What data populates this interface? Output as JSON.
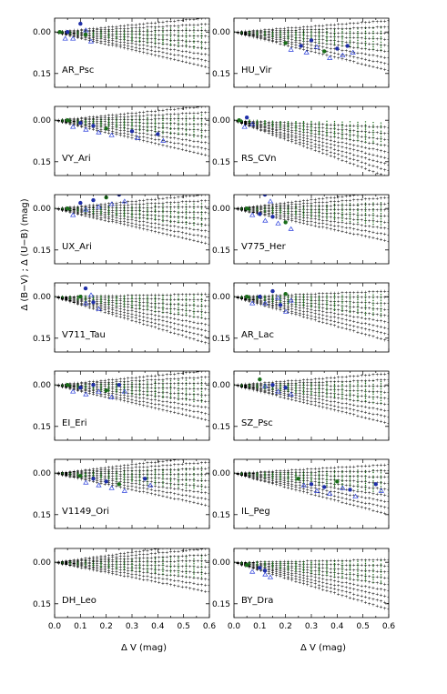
{
  "figure": {
    "ylabel": "Δ (B−V) ; Δ (U−B) (mag)",
    "xlabel": "Δ V (mag)"
  },
  "chart_data": {
    "type": "scatter",
    "layout": "7 rows × 2 columns of panels",
    "xlim": [
      0.0,
      0.6
    ],
    "ylim": [
      -0.05,
      0.2
    ],
    "y_inverted": true,
    "xticks": [
      "0.0",
      "0.1",
      "0.2",
      "0.3",
      "0.4",
      "0.5",
      "0.6"
    ],
    "yticks": [
      "0.00",
      "0.15"
    ],
    "ytick_values": [
      0.0,
      0.15
    ],
    "series_colors": {
      "model_BV": "#ff1a1a",
      "model_UB": "#1a6e1a",
      "obs_BV": "#1f2fa8",
      "obs_UB": "#2a3fdc"
    },
    "panels": [
      {
        "label": "AR_Psc",
        "model_slope": 0.25,
        "obs": [
          [
            0.02,
            0.0
          ],
          [
            0.05,
            0.0
          ],
          [
            0.1,
            -0.03
          ],
          [
            0.12,
            0.01
          ]
        ]
      },
      {
        "label": "HU_Vir",
        "model_slope": 0.2,
        "obs": [
          [
            0.2,
            0.04
          ],
          [
            0.26,
            0.05
          ],
          [
            0.3,
            0.03
          ],
          [
            0.35,
            0.07
          ],
          [
            0.4,
            0.06
          ],
          [
            0.44,
            0.05
          ]
        ]
      },
      {
        "label": "VY_Ari",
        "model_slope": 0.25,
        "obs": [
          [
            0.05,
            0.0
          ],
          [
            0.1,
            0.01
          ],
          [
            0.15,
            0.02
          ],
          [
            0.2,
            0.03
          ],
          [
            0.3,
            0.04
          ],
          [
            0.4,
            0.05
          ]
        ]
      },
      {
        "label": "RS_CVn",
        "model_slope": -0.12,
        "obs": [
          [
            0.02,
            0.0
          ],
          [
            0.05,
            -0.01
          ]
        ]
      },
      {
        "label": "UX_Ari",
        "model_slope": 0.25,
        "obs": [
          [
            0.05,
            0.0
          ],
          [
            0.1,
            -0.02
          ],
          [
            0.15,
            -0.03
          ],
          [
            0.2,
            -0.04
          ],
          [
            0.25,
            -0.05
          ]
        ]
      },
      {
        "label": "V775_Her",
        "model_slope": 0.3,
        "obs": [
          [
            0.05,
            0.0
          ],
          [
            0.1,
            0.02
          ],
          [
            0.15,
            0.03
          ],
          [
            0.2,
            0.05
          ],
          [
            0.12,
            -0.05
          ]
        ]
      },
      {
        "label": "V711_Tau",
        "model_slope": 0.05,
        "obs": [
          [
            0.1,
            0.0
          ],
          [
            0.15,
            0.02
          ],
          [
            0.12,
            -0.03
          ]
        ]
      },
      {
        "label": "AR_Lac",
        "model_slope": 0.1,
        "obs": [
          [
            0.05,
            0.0
          ],
          [
            0.1,
            0.0
          ],
          [
            0.15,
            -0.02
          ],
          [
            0.2,
            -0.01
          ],
          [
            0.18,
            0.03
          ]
        ]
      },
      {
        "label": "EI_Eri",
        "model_slope": 0.25,
        "obs": [
          [
            0.05,
            0.0
          ],
          [
            0.1,
            0.01
          ],
          [
            0.15,
            0.0
          ],
          [
            0.2,
            0.02
          ],
          [
            0.25,
            0.0
          ]
        ]
      },
      {
        "label": "SZ_Psc",
        "model_slope": 0.2,
        "obs": [
          [
            0.1,
            -0.02
          ],
          [
            0.15,
            0.0
          ],
          [
            0.2,
            0.01
          ]
        ]
      },
      {
        "label": "V1149_Ori",
        "model_slope": 0.3,
        "obs": [
          [
            0.1,
            0.01
          ],
          [
            0.15,
            0.02
          ],
          [
            0.2,
            0.03
          ],
          [
            0.25,
            0.04
          ],
          [
            0.35,
            0.02
          ]
        ]
      },
      {
        "label": "IL_Peg",
        "model_slope": 0.15,
        "obs": [
          [
            0.25,
            0.02
          ],
          [
            0.3,
            0.04
          ],
          [
            0.35,
            0.05
          ],
          [
            0.4,
            0.03
          ],
          [
            0.45,
            0.06
          ],
          [
            0.55,
            0.04
          ]
        ]
      },
      {
        "label": "DH_Leo",
        "model_slope": 0.35,
        "obs": []
      },
      {
        "label": "BY_Dra",
        "model_slope": 0.05,
        "obs": [
          [
            0.05,
            0.01
          ],
          [
            0.1,
            0.02
          ],
          [
            0.12,
            0.03
          ]
        ]
      }
    ]
  }
}
